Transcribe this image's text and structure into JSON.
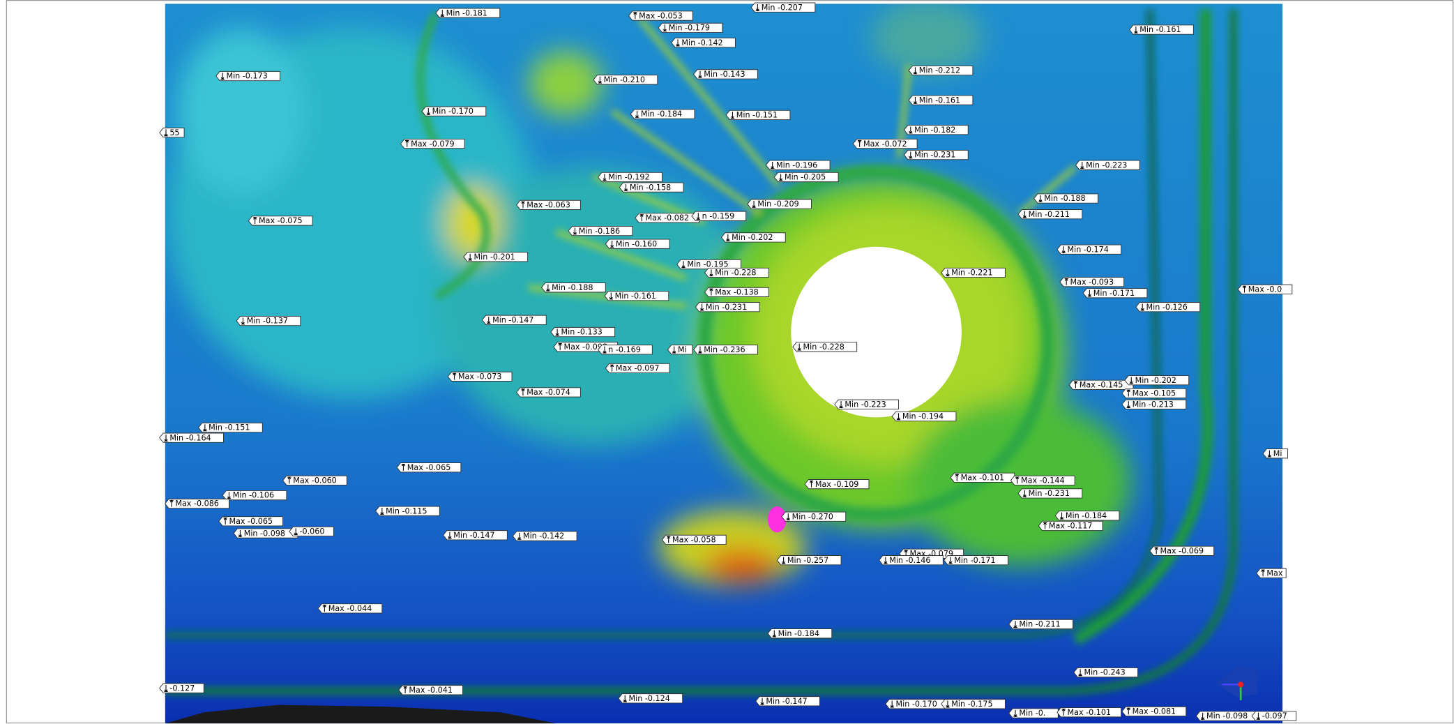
{
  "labels": [
    "Min -0.181",
    "Max -0.053",
    "Min -0.207",
    "Min -0.179",
    "Min -0.142",
    "Min -0.161",
    "Min -0.173",
    "Min -0.143",
    "Min -0.212",
    "Min -0.210",
    "Min -0.161",
    "Min -0.170",
    "Min -0.184",
    "Min -0.151",
    "Min -0.182",
    "55",
    "Max -0.079",
    "Max -0.072",
    "Min -0.231",
    "Min -0.196",
    "Min -0.223",
    "Min -0.192",
    "Min -0.205",
    "Min -0.158",
    "Min -0.188",
    "Max -0.063",
    "Min -0.209",
    "Min -0.211",
    "Max -0.082",
    "n -0.159",
    "Max -0.075",
    "Min -0.186",
    "Min -0.202",
    "Min -0.160",
    "Min -0.174",
    "Min -0.201",
    "Min -0.195",
    "Min -0.228",
    "Min -0.221",
    "Max -0.093",
    "Min -0.188",
    "Max -0.138",
    "Min -0.171",
    "Min -0.161",
    "Max -0.0",
    "Min -0.231",
    "Min -0.126",
    "Min -0.137",
    "Min -0.147",
    "Min -0.133",
    "Min -0.228",
    "Max -0.098",
    "n -0.169",
    "Mi",
    "Min -0.236",
    "Max -0.097",
    "Max -0.073",
    "Max -0.145",
    "Min -0.202",
    "Max -0.105",
    "Max -0.074",
    "Min -0.213",
    "Min -0.223",
    "Min -0.194",
    "Min -0.151",
    "Min -0.164",
    "Mi",
    "Max -0.065",
    "Max -0.060",
    "Max -0.109",
    "Max -0.101",
    "Max -0.144",
    "Min -0.106",
    "Min -0.231",
    "Max -0.086",
    "Min -0.115",
    "Min -0.270",
    "Min -0.184",
    "Max -0.065",
    "Max -0.117",
    "Min -0.098",
    "-0.060",
    "Min -0.147",
    "Min -0.142",
    "Max -0.058",
    "Max -0.069",
    "Max -0.079",
    "Min -0.146",
    "Min -0.171",
    "Min -0.257",
    "Max",
    "Max -0.044",
    "Min -0.184",
    "Min -0.211",
    "Min -0.243",
    "-0.127",
    "Max -0.041",
    "Min -0.124",
    "Min -0.147",
    "Min -0.170",
    "Min -0.175",
    "Min -0.",
    "Max -0.101",
    "Max -0.081",
    "Min -0.098",
    "-0.097"
  ]
}
